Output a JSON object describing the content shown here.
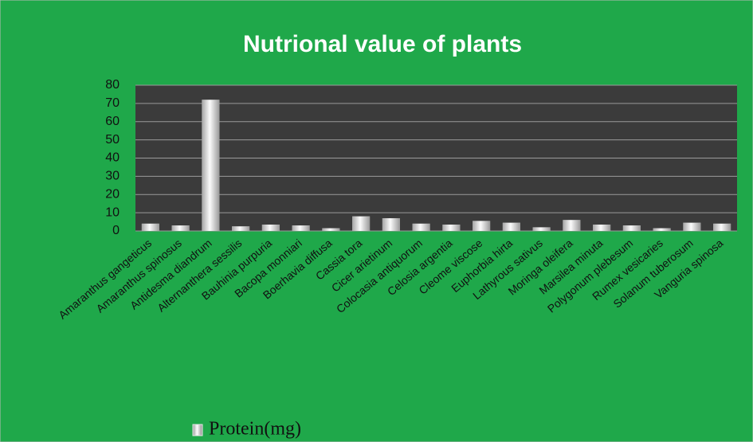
{
  "chart_data": {
    "type": "bar",
    "title": "Nutrional value of plants",
    "categories": [
      "Amaranthus gangeticus",
      "Amaranthus spinosus",
      "Antidesma diandrum",
      "Alternanthera sessilis",
      "Bauhinia purpuria",
      "Bacopa monniari",
      "Boerhavia diffusa",
      "Cassia tora",
      "Cicer arietinum",
      "Colocasia antiquorum",
      "Celosia argentia",
      "Cleome viscose",
      "Euphorbia hirta",
      "Lathyrous sativus",
      "Moringa oleifera",
      "Marsilea minuta",
      "Polygonum plebesum",
      "Rumex vesicaries",
      "Solanum tuberosum",
      "Vanguria spinosa"
    ],
    "series": [
      {
        "name": "Protein(mg)",
        "color": "#e6e6e6",
        "values": [
          4,
          3,
          72,
          2.5,
          3.5,
          3,
          1.5,
          8,
          7,
          4,
          3.5,
          5.5,
          4.5,
          2,
          6,
          3.5,
          3,
          1.5,
          4.5,
          4
        ]
      }
    ],
    "ylim": [
      0,
      80
    ],
    "yticks": [
      0,
      10,
      20,
      30,
      40,
      50,
      60,
      70,
      80
    ],
    "grid": true,
    "legend": "bottom"
  }
}
